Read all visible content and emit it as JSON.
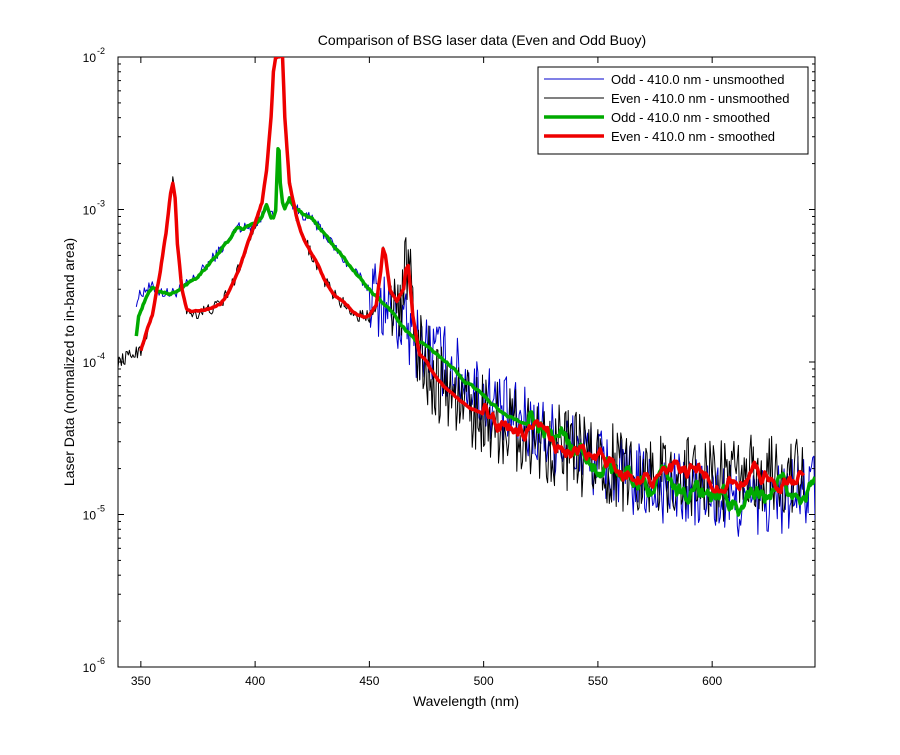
{
  "chart_data": {
    "type": "line",
    "title": "Comparison of BSG laser data (Even and Odd Buoy)",
    "xlabel": "Wavelength (nm)",
    "ylabel": "Laser Data (normalized to in-band area)",
    "xlim": [
      340,
      645
    ],
    "ylim": [
      1e-06,
      0.01
    ],
    "yscale": "log",
    "grid": false,
    "legend_position": "top-right",
    "x_ticks": [
      {
        "value": 350,
        "label": "350"
      },
      {
        "value": 400,
        "label": "400"
      },
      {
        "value": 450,
        "label": "450"
      },
      {
        "value": 500,
        "label": "500"
      },
      {
        "value": 550,
        "label": "550"
      },
      {
        "value": 600,
        "label": "600"
      }
    ],
    "y_ticks": [
      {
        "value": 0.01,
        "base": "10",
        "exp": "-2"
      },
      {
        "value": 0.001,
        "base": "10",
        "exp": "-3"
      },
      {
        "value": 0.0001,
        "base": "10",
        "exp": "-4"
      },
      {
        "value": 1e-05,
        "base": "10",
        "exp": "-5"
      },
      {
        "value": 1e-06,
        "base": "10",
        "exp": "-6"
      }
    ],
    "series": [
      {
        "name": "Odd - 410.0 nm - unsmoothed",
        "color": "#0000cc",
        "line_width": 1,
        "x": [
          348,
          350,
          352,
          355,
          358,
          362,
          366,
          370,
          375,
          380,
          385,
          390,
          392,
          395,
          398,
          400,
          403,
          405,
          407,
          408,
          409,
          410,
          410.5,
          411,
          412,
          413,
          415,
          418,
          420,
          425,
          430,
          440,
          450,
          455,
          460,
          465,
          470,
          480,
          490,
          500,
          510,
          520,
          530,
          540,
          550,
          560,
          570,
          580,
          590,
          600,
          610,
          620,
          630,
          640,
          645
        ],
        "y": [
          0.00025,
          0.00028,
          0.0003,
          0.00031,
          0.00029,
          0.00028,
          0.00029,
          0.00032,
          0.00037,
          0.00045,
          0.00055,
          0.00066,
          0.0008,
          0.00075,
          0.00078,
          0.0008,
          0.0009,
          0.0011,
          0.0009,
          0.0009,
          0.001,
          0.002,
          0.0022,
          0.0018,
          0.0011,
          0.001,
          0.00118,
          0.001,
          0.00095,
          0.00085,
          0.0007,
          0.00045,
          0.0003,
          0.00025,
          0.00021,
          0.00017,
          0.00014,
          0.00011,
          8e-05,
          6e-05,
          4.5e-05,
          3.8e-05,
          3.2e-05,
          2.7e-05,
          2.2e-05,
          1.8e-05,
          1.6e-05,
          1.5e-05,
          1.4e-05,
          1.3e-05,
          1.2e-05,
          1.2e-05,
          1.3e-05,
          1.4e-05,
          1.5e-05
        ],
        "noise_amplitude_log": 0.25,
        "noise_from_x": 450
      },
      {
        "name": "Even - 410.0 nm - unsmoothed",
        "color": "#000000",
        "line_width": 1,
        "x": [
          340,
          345,
          350,
          355,
          358,
          361,
          363,
          364,
          365,
          366,
          368,
          370,
          372,
          375,
          380,
          385,
          390,
          395,
          400,
          403,
          405,
          407,
          408,
          409,
          410,
          411,
          412,
          413,
          415,
          418,
          420,
          425,
          430,
          435,
          440,
          445,
          450,
          453,
          455,
          456,
          457,
          459,
          462,
          465,
          466,
          467,
          469,
          472,
          475,
          480,
          490,
          500,
          510,
          520,
          530,
          540,
          550,
          560,
          570,
          580,
          590,
          600,
          610,
          620,
          630,
          640
        ],
        "y": [
          0.0001,
          0.00011,
          0.00012,
          0.0002,
          0.00035,
          0.0007,
          0.0013,
          0.0015,
          0.0012,
          0.0006,
          0.0003,
          0.00022,
          0.00021,
          0.00021,
          0.00022,
          0.00024,
          0.00032,
          0.0005,
          0.0008,
          0.0011,
          0.0018,
          0.004,
          0.008,
          0.01,
          0.01,
          0.01,
          0.01,
          0.004,
          0.0015,
          0.0009,
          0.0007,
          0.0005,
          0.00035,
          0.00027,
          0.00023,
          0.0002,
          0.0002,
          0.00024,
          0.0004,
          0.00055,
          0.0005,
          0.0003,
          0.00025,
          0.0003,
          0.0004,
          0.00042,
          0.0002,
          0.00011,
          0.0001,
          7.5e-05,
          5.5e-05,
          4.5e-05,
          3.8e-05,
          3.3e-05,
          3e-05,
          2.5e-05,
          2.2e-05,
          2e-05,
          1.9e-05,
          1.8e-05,
          1.8e-05,
          1.7e-05,
          1.7e-05,
          1.8e-05,
          1.8e-05,
          1.8e-05
        ],
        "noise_amplitude_log": 0.28,
        "noise_from_x": 460
      },
      {
        "name": "Odd - 410.0 nm - smoothed",
        "color": "#00aa00",
        "line_width": 3.5,
        "x": [
          348,
          349,
          350,
          352,
          355,
          358,
          362,
          366,
          370,
          375,
          380,
          385,
          390,
          392,
          395,
          398,
          400,
          403,
          405,
          407,
          408,
          409,
          410,
          410.5,
          411,
          412,
          413,
          415,
          418,
          420,
          425,
          430,
          440,
          450,
          455,
          460,
          465,
          470,
          480,
          490,
          500,
          510,
          520,
          530,
          540,
          550,
          560,
          570,
          580,
          590,
          600,
          610,
          620,
          630,
          640,
          645
        ],
        "y": [
          0.00015,
          0.0002,
          0.00022,
          0.00026,
          0.00031,
          0.00029,
          0.00028,
          0.00029,
          0.00032,
          0.00037,
          0.00045,
          0.00055,
          0.00066,
          0.00075,
          0.00075,
          0.00078,
          0.0008,
          0.0009,
          0.0011,
          0.0009,
          0.0009,
          0.001,
          0.0025,
          0.0024,
          0.0015,
          0.0011,
          0.001,
          0.00118,
          0.001,
          0.00095,
          0.00085,
          0.0007,
          0.00045,
          0.0003,
          0.00025,
          0.00021,
          0.00017,
          0.00014,
          0.00011,
          8e-05,
          6e-05,
          4.5e-05,
          3.8e-05,
          3.2e-05,
          2.7e-05,
          2.2e-05,
          1.8e-05,
          1.6e-05,
          1.5e-05,
          1.4e-05,
          1.3e-05,
          1.2e-05,
          1.2e-05,
          1.3e-05,
          1.4e-05,
          1.5e-05
        ],
        "noise_amplitude_log": 0.1,
        "noise_from_x": 520
      },
      {
        "name": "Even - 410.0 nm - smoothed",
        "color": "#ee0000",
        "line_width": 3.5,
        "x": [
          350,
          352,
          355,
          358,
          361,
          363,
          364,
          365,
          366,
          368,
          370,
          372,
          375,
          380,
          385,
          390,
          395,
          400,
          403,
          405,
          407,
          408,
          409,
          410,
          411,
          412,
          413,
          415,
          418,
          420,
          425,
          430,
          435,
          440,
          445,
          450,
          453,
          455,
          456,
          457,
          459,
          462,
          465,
          466,
          467,
          469,
          472,
          475,
          480,
          490,
          500,
          510,
          520,
          530,
          540,
          550,
          560,
          570,
          580,
          590,
          600,
          610,
          620,
          630,
          640
        ],
        "y": [
          0.00012,
          0.00015,
          0.0002,
          0.00035,
          0.0007,
          0.0013,
          0.0015,
          0.0012,
          0.0006,
          0.0003,
          0.00022,
          0.00021,
          0.00021,
          0.00022,
          0.00024,
          0.00032,
          0.0005,
          0.0008,
          0.0011,
          0.0018,
          0.004,
          0.008,
          0.01,
          0.01,
          0.01,
          0.01,
          0.004,
          0.0015,
          0.0009,
          0.0007,
          0.0005,
          0.00035,
          0.00027,
          0.00023,
          0.0002,
          0.0002,
          0.00024,
          0.0004,
          0.00055,
          0.0005,
          0.0003,
          0.00025,
          0.0003,
          0.0004,
          0.00042,
          0.0002,
          0.00011,
          0.0001,
          7.5e-05,
          5.5e-05,
          4.5e-05,
          3.8e-05,
          3.3e-05,
          3e-05,
          2.5e-05,
          2.2e-05,
          2e-05,
          1.9e-05,
          1.8e-05,
          1.8e-05,
          1.7e-05,
          1.7e-05,
          1.8e-05,
          1.8e-05,
          1.8e-05
        ],
        "noise_amplitude_log": 0.08,
        "noise_from_x": 500
      }
    ]
  }
}
